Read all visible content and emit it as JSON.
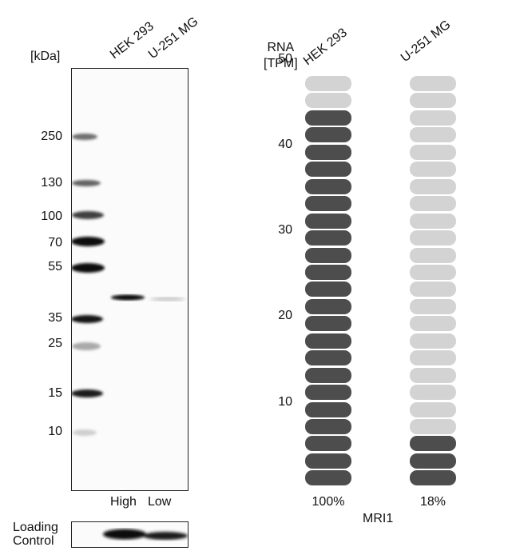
{
  "western_blot": {
    "unit_label": "[kDa]",
    "lanes": [
      "HEK 293",
      "U-251 MG"
    ],
    "ladder": [
      "250",
      "130",
      "100",
      "70",
      "55",
      "35",
      "25",
      "15",
      "10"
    ],
    "lane_levels": [
      "High",
      "Low"
    ],
    "loading_control_label_line1": "Loading",
    "loading_control_label_line2": "Control"
  },
  "rna": {
    "title_line1": "RNA",
    "title_line2": "[TPM]",
    "gene": "MRI1",
    "colors": {
      "filled": "#4d4d4d",
      "empty": "#d3d3d3"
    },
    "chart_data": {
      "type": "bar",
      "categories": [
        "HEK 293",
        "U-251 MG"
      ],
      "y_ticks": [
        "10",
        "20",
        "30",
        "40",
        "50"
      ],
      "segments_total": 24,
      "filled_segments": [
        22,
        3
      ],
      "percent_labels": [
        "100%",
        "18%"
      ]
    }
  }
}
